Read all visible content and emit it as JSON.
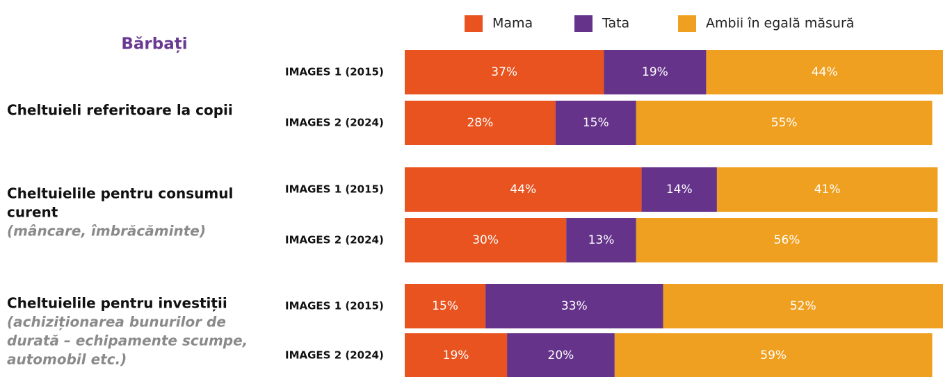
{
  "chart_data": {
    "type": "stacked_bar",
    "title": "Bărbați",
    "xlim": [
      0,
      100
    ],
    "legend": "top",
    "groups": [
      {
        "label": [
          "Cheltuieli referitoare la copii"
        ]
      },
      {
        "label": [
          "Cheltuielile pentru consumul",
          "curent"
        ],
        "note": [
          "(mâncare, îmbrăcăminte)"
        ]
      },
      {
        "label": [
          "Cheltuielile pentru investiții"
        ],
        "note": [
          "(achiziționarea bunurilor de",
          "durată – echipamente scumpe,",
          "automobil etc.)"
        ]
      }
    ],
    "categories": [
      "IMAGES 1 (2015)",
      "IMAGES 2 (2024)",
      "IMAGES 1 (2015)",
      "IMAGES 2 (2024)",
      "IMAGES 1 (2015)",
      "IMAGES 2 (2024)"
    ],
    "series": [
      {
        "name": "Mama",
        "color": "#e8531f",
        "values": [
          37,
          28,
          44,
          30,
          15,
          19
        ],
        "value_labels": [
          "37%",
          "28%",
          "44%",
          "30%",
          "15%",
          "19%"
        ]
      },
      {
        "name": "Tata",
        "color": "#65338a",
        "values": [
          19,
          15,
          14,
          13,
          33,
          20
        ],
        "value_labels": [
          "19%",
          "15%",
          "14%",
          "13%",
          "33%",
          "20%"
        ]
      },
      {
        "name": "Ambii în egală măsură",
        "color": "#f0a020",
        "values": [
          44,
          55,
          41,
          56,
          52,
          59
        ],
        "value_labels": [
          "44%",
          "55%",
          "41%",
          "56%",
          "52%",
          "59%"
        ]
      }
    ]
  }
}
